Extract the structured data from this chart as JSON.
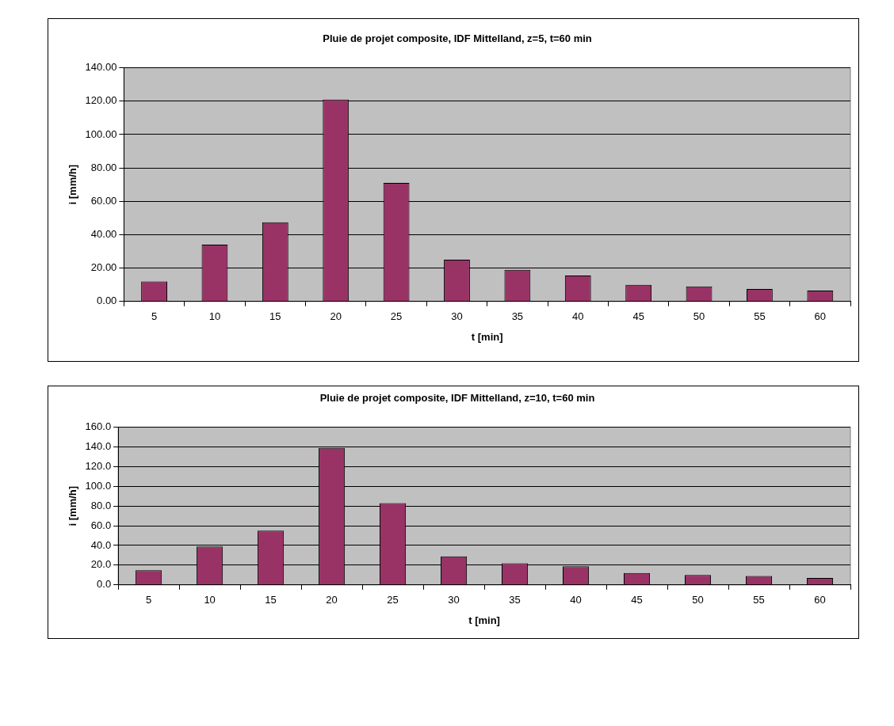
{
  "chart_data": [
    {
      "type": "bar",
      "title": "Pluie de projet composite, IDF Mittelland, z=5, t=60 min",
      "xlabel": "t [min]",
      "ylabel": "i [mm/h]",
      "categories": [
        "5",
        "10",
        "15",
        "20",
        "25",
        "30",
        "35",
        "40",
        "45",
        "50",
        "55",
        "60"
      ],
      "values": [
        12,
        34,
        47.5,
        121,
        71,
        25,
        19,
        15.5,
        10,
        9,
        7.5,
        6.5
      ],
      "color": "#993366",
      "ylim": [
        0,
        140
      ],
      "yticks": [
        {
          "value": 0,
          "label": "0.00"
        },
        {
          "value": 20,
          "label": "20.00"
        },
        {
          "value": 40,
          "label": "40.00"
        },
        {
          "value": 60,
          "label": "60.00"
        },
        {
          "value": 80,
          "label": "80.00"
        },
        {
          "value": 100,
          "label": "100.00"
        },
        {
          "value": 120,
          "label": "120.00"
        },
        {
          "value": 140,
          "label": "140.00"
        }
      ],
      "grid": "y",
      "legend": false
    },
    {
      "type": "bar",
      "title": "Pluie de projet composite, IDF Mittelland, z=10, t=60 min",
      "xlabel": "t [min]",
      "ylabel": "i [mm/h]",
      "categories": [
        "5",
        "10",
        "15",
        "20",
        "25",
        "30",
        "35",
        "40",
        "45",
        "50",
        "55",
        "60"
      ],
      "values": [
        15,
        39,
        55,
        139,
        83,
        29,
        22,
        19,
        12,
        10,
        9,
        7
      ],
      "color": "#993366",
      "ylim": [
        0,
        160
      ],
      "yticks": [
        {
          "value": 0,
          "label": "0.0"
        },
        {
          "value": 20,
          "label": "20.0"
        },
        {
          "value": 40,
          "label": "40.0"
        },
        {
          "value": 60,
          "label": "60.0"
        },
        {
          "value": 80,
          "label": "80.0"
        },
        {
          "value": 100,
          "label": "100.0"
        },
        {
          "value": 120,
          "label": "120.0"
        },
        {
          "value": 140,
          "label": "140.0"
        },
        {
          "value": 160,
          "label": "160.0"
        }
      ],
      "grid": "y",
      "legend": false
    }
  ]
}
